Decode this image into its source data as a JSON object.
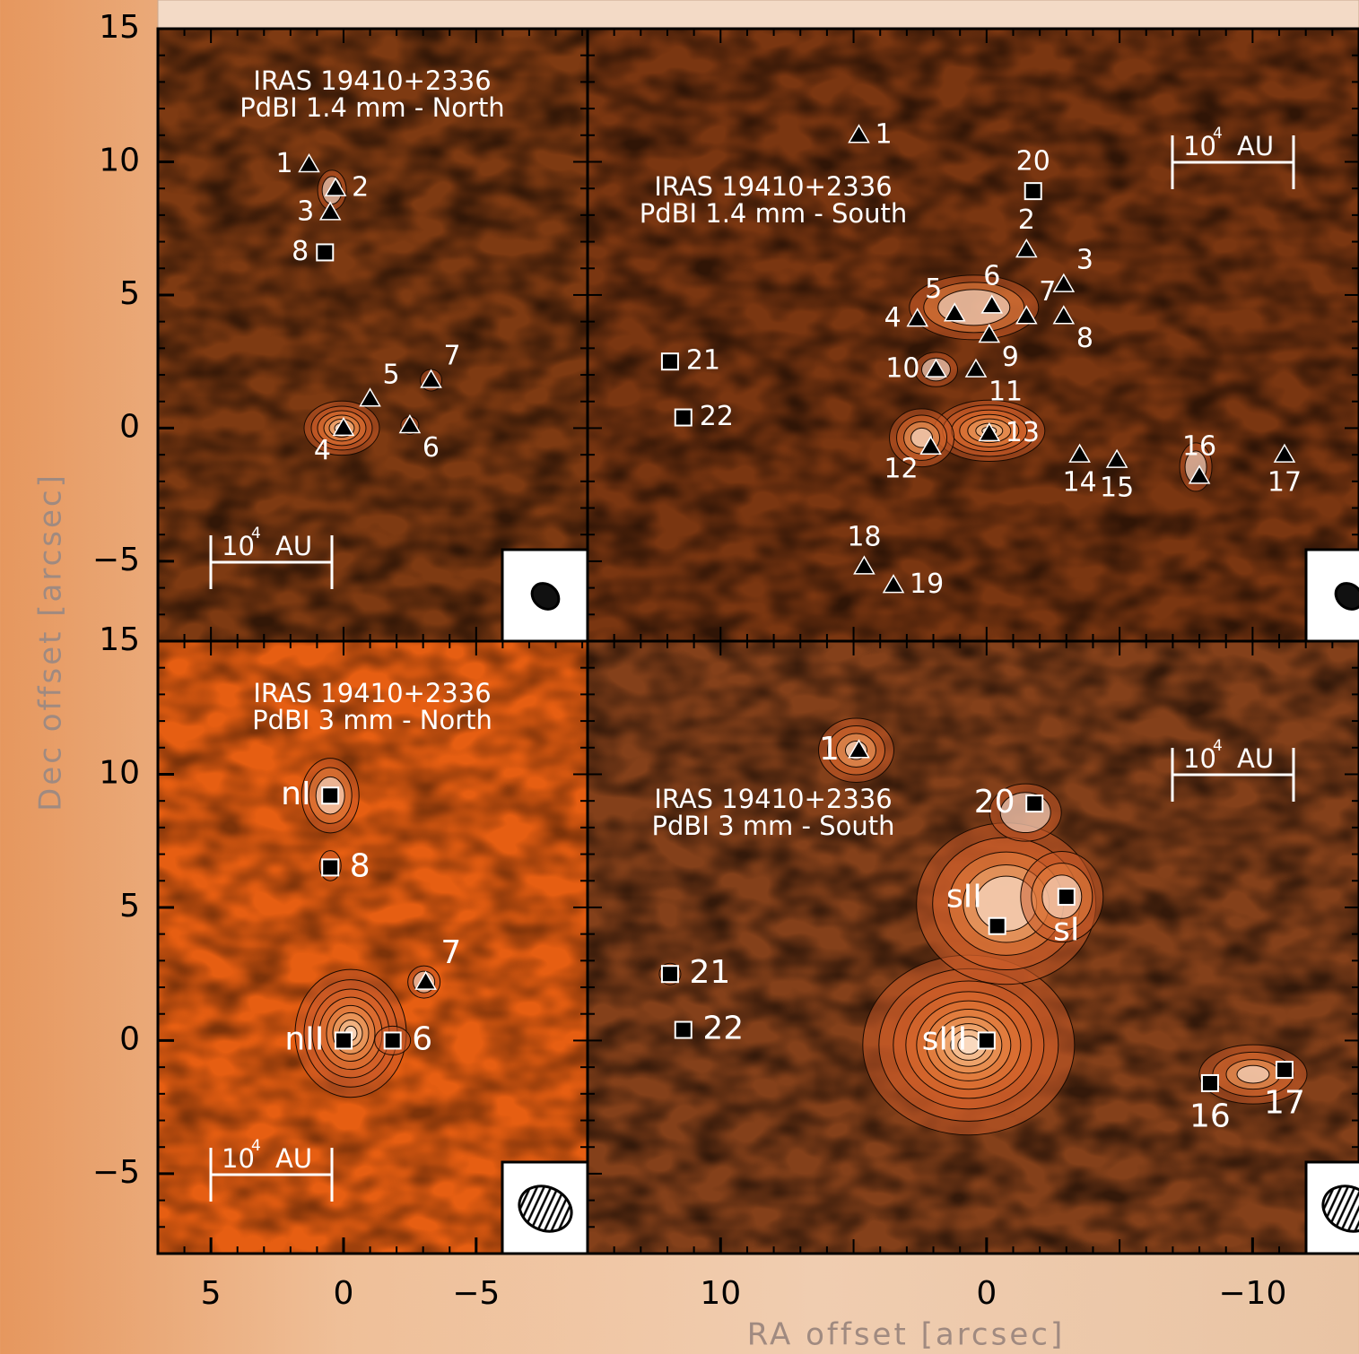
{
  "axis_labels": {
    "x": "RA offset [arcsec]",
    "y": "Dec offset [arcsec]"
  },
  "scale_bar": {
    "base": "10",
    "exponent": "4",
    "unit": "AU"
  },
  "chart_data": [
    {
      "type": "scatter",
      "title": "IRAS 19410+2336",
      "subtitle": "PdBI 1.4 mm - North",
      "xlim": [
        7,
        -9.2
      ],
      "ylim": [
        -8,
        15
      ],
      "yticks": [
        15,
        10,
        5,
        0,
        {
          "value": -5,
          "label": "−5"
        }
      ],
      "points": [
        {
          "label": "1",
          "marker": "triangle",
          "x": 1.3,
          "y": 9.9
        },
        {
          "label": "2",
          "marker": "triangle",
          "x": 0.3,
          "y": 9.0
        },
        {
          "label": "3",
          "marker": "triangle",
          "x": 0.5,
          "y": 8.1
        },
        {
          "label": "8",
          "marker": "square",
          "x": 0.7,
          "y": 6.6
        },
        {
          "label": "4",
          "marker": "triangle",
          "x": 0,
          "y": 0
        },
        {
          "label": "5",
          "marker": "triangle",
          "x": -1.0,
          "y": 1.1
        },
        {
          "label": "7",
          "marker": "triangle",
          "x": -3.3,
          "y": 1.8
        },
        {
          "label": "6",
          "marker": "triangle",
          "x": -2.5,
          "y": 0.1
        }
      ]
    },
    {
      "type": "scatter",
      "title": "IRAS 19410+2336",
      "subtitle": "PdBI 1.4 mm - South",
      "xlim": [
        15,
        -14
      ],
      "ylim": [
        -8,
        15
      ],
      "points": [
        {
          "label": "1",
          "marker": "triangle",
          "x": 4.8,
          "y": 11.0
        },
        {
          "label": "20",
          "marker": "square",
          "x": -1.75,
          "y": 8.9
        },
        {
          "label": "2",
          "marker": "triangle",
          "x": -1.5,
          "y": 6.7
        },
        {
          "label": "3",
          "marker": "triangle",
          "x": -2.9,
          "y": 5.4
        },
        {
          "label": "4",
          "marker": "triangle",
          "x": 2.6,
          "y": 4.1
        },
        {
          "label": "5",
          "marker": "triangle",
          "x": 1.2,
          "y": 4.3
        },
        {
          "label": "6",
          "marker": "triangle",
          "x": -0.2,
          "y": 4.6
        },
        {
          "label": "7",
          "marker": "triangle",
          "x": -1.5,
          "y": 4.2
        },
        {
          "label": "8",
          "marker": "triangle",
          "x": -2.9,
          "y": 4.2
        },
        {
          "label": "9",
          "marker": "triangle",
          "x": -0.1,
          "y": 3.5
        },
        {
          "label": "10",
          "marker": "triangle",
          "x": 1.9,
          "y": 2.2
        },
        {
          "label": "11",
          "marker": "triangle",
          "x": 0.4,
          "y": 2.2
        },
        {
          "label": "12",
          "marker": "triangle",
          "x": 2.1,
          "y": -0.7
        },
        {
          "label": "13",
          "marker": "triangle",
          "x": -0.1,
          "y": -0.2
        },
        {
          "label": "14",
          "marker": "triangle",
          "x": -3.5,
          "y": -1.0
        },
        {
          "label": "15",
          "marker": "triangle",
          "x": -4.9,
          "y": -1.2
        },
        {
          "label": "16",
          "marker": "triangle",
          "x": -8.0,
          "y": -1.8
        },
        {
          "label": "17",
          "marker": "triangle",
          "x": -11.2,
          "y": -1.0
        },
        {
          "label": "18",
          "marker": "triangle",
          "x": 4.6,
          "y": -5.2
        },
        {
          "label": "19",
          "marker": "triangle",
          "x": 3.5,
          "y": -5.9
        },
        {
          "label": "21",
          "marker": "square",
          "x": 11.9,
          "y": 2.5
        },
        {
          "label": "22",
          "marker": "square",
          "x": 11.4,
          "y": 0.4
        }
      ]
    },
    {
      "type": "scatter",
      "title": "IRAS 19410+2336",
      "subtitle": "PdBI 3 mm - North",
      "xlim": [
        7,
        -9.2
      ],
      "ylim": [
        -8,
        15
      ],
      "xticks": [
        5,
        0,
        {
          "value": -5,
          "label": "−5"
        }
      ],
      "yticks": [
        15,
        10,
        5,
        0,
        {
          "value": -5,
          "label": "−5"
        }
      ],
      "points": [
        {
          "label": "nI",
          "marker": "square",
          "x": 0.5,
          "y": 9.2
        },
        {
          "label": "8",
          "marker": "square",
          "x": 0.5,
          "y": 6.5
        },
        {
          "label": "7",
          "marker": "triangle",
          "x": -3.1,
          "y": 2.2
        },
        {
          "label": "nII",
          "marker": "square",
          "x": 0,
          "y": 0
        },
        {
          "label": "6",
          "marker": "square",
          "x": -1.85,
          "y": 0
        }
      ]
    },
    {
      "type": "scatter",
      "title": "IRAS 19410+2336",
      "subtitle": "PdBI 3 mm - South",
      "xlim": [
        15,
        -14
      ],
      "ylim": [
        -8,
        15
      ],
      "xticks": [
        10,
        0,
        {
          "value": -10,
          "label": "−10"
        }
      ],
      "points": [
        {
          "label": "1",
          "marker": "triangle",
          "x": 4.8,
          "y": 10.9
        },
        {
          "label": "20",
          "marker": "square",
          "x": -1.8,
          "y": 8.9
        },
        {
          "label": "sI",
          "marker": "square",
          "x": -3.0,
          "y": 5.4
        },
        {
          "label": "sII",
          "marker": "square",
          "x": -0.4,
          "y": 4.3
        },
        {
          "label": "21",
          "marker": "square",
          "x": 11.9,
          "y": 2.5
        },
        {
          "label": "22",
          "marker": "square",
          "x": 11.4,
          "y": 0.4
        },
        {
          "label": "sIII",
          "marker": "square",
          "x": 0,
          "y": 0
        },
        {
          "label": "16",
          "marker": "square",
          "x": -8.4,
          "y": -1.6
        },
        {
          "label": "17",
          "marker": "square",
          "x": -11.2,
          "y": -1.1
        }
      ]
    }
  ]
}
